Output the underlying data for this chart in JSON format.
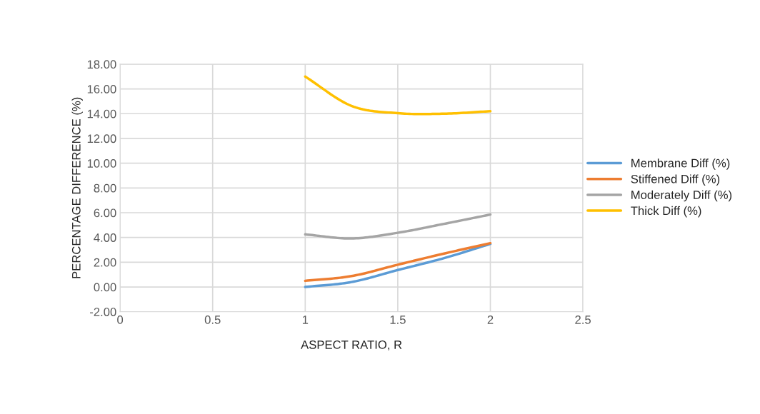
{
  "chart_data": {
    "type": "line",
    "xlabel": "ASPECT RATIO, R",
    "ylabel": "PERCENTAGE DIFFERENCE (%)",
    "x": [
      1,
      1.25,
      1.5,
      1.75,
      2
    ],
    "series": [
      {
        "name": "Membrane Diff (%)",
        "color": "#5b9bd5",
        "values": [
          0.0,
          0.4,
          1.37,
          2.33,
          3.48
        ]
      },
      {
        "name": "Stiffened Diff (%)",
        "color": "#ed7d31",
        "values": [
          0.5,
          0.88,
          1.8,
          2.7,
          3.54
        ]
      },
      {
        "name": "Moderately Diff (%)",
        "color": "#a5a5a5",
        "values": [
          4.25,
          3.92,
          4.38,
          5.1,
          5.85
        ]
      },
      {
        "name": "Thick Diff (%)",
        "color": "#ffc000",
        "values": [
          17.0,
          14.63,
          14.04,
          14.0,
          14.2
        ]
      }
    ],
    "xlim": [
      0,
      2.5
    ],
    "xticks": [
      0,
      0.5,
      1,
      1.5,
      2,
      2.5
    ],
    "ylim": [
      -2,
      18
    ],
    "yticks": [
      {
        "value": -2,
        "label": "-2.00"
      },
      {
        "value": 0,
        "label": "0.00"
      },
      {
        "value": 2,
        "label": "2.00"
      },
      {
        "value": 4,
        "label": "4.00"
      },
      {
        "value": 6,
        "label": "6.00"
      },
      {
        "value": 8,
        "label": "8.00"
      },
      {
        "value": 10,
        "label": "10.00"
      },
      {
        "value": 12,
        "label": "12.00"
      },
      {
        "value": 14,
        "label": "14.00"
      },
      {
        "value": 16,
        "label": "16.00"
      },
      {
        "value": 18,
        "label": "18.00"
      }
    ],
    "grid": true,
    "legend": "right",
    "marker": "none",
    "line_style": "solid"
  }
}
